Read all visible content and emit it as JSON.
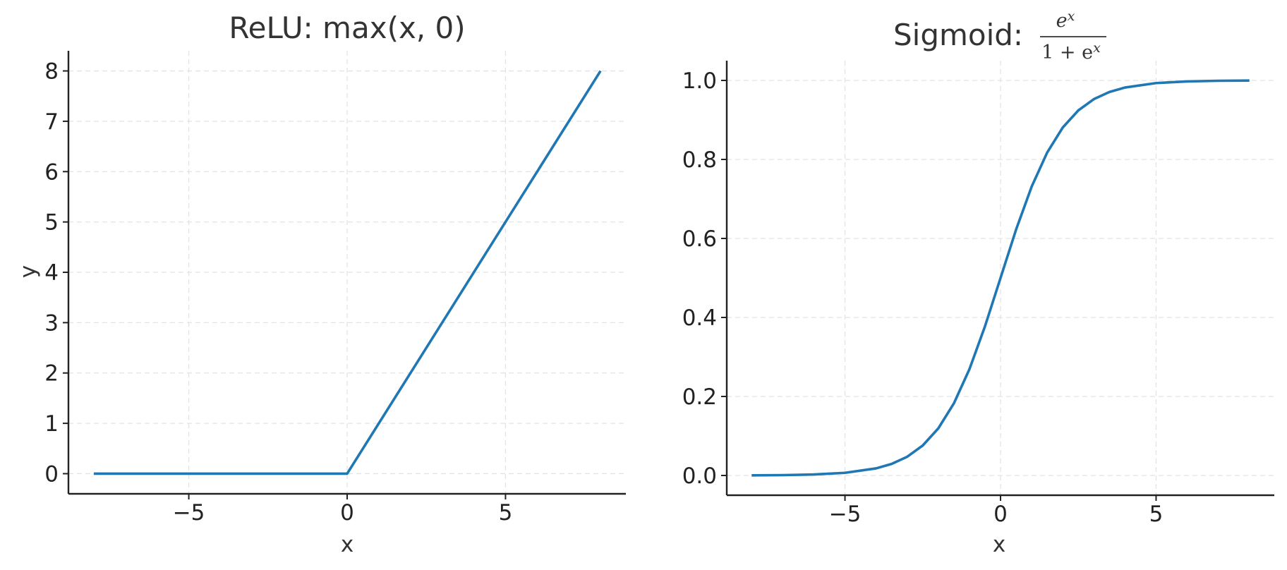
{
  "chart_data": [
    {
      "type": "line",
      "title": "ReLU: max(x, 0)",
      "xlabel": "x",
      "ylabel": "y",
      "xlim": [
        -8.8,
        8.8
      ],
      "ylim": [
        -0.4,
        8.4
      ],
      "xticks": [
        -5,
        0,
        5
      ],
      "xtick_labels": [
        "−5",
        "0",
        "5"
      ],
      "yticks": [
        0,
        1,
        2,
        3,
        4,
        5,
        6,
        7,
        8
      ],
      "ytick_labels": [
        "0",
        "1",
        "2",
        "3",
        "4",
        "5",
        "6",
        "7",
        "8"
      ],
      "grid": true,
      "legend": "none",
      "series": [
        {
          "color": "#1f77b4",
          "x": [
            -8,
            0,
            8
          ],
          "y": [
            0,
            0,
            8
          ]
        }
      ]
    },
    {
      "type": "line",
      "title": "Sigmoid: ",
      "title_formula": {
        "numerator": "e",
        "numerator_exponent": "x",
        "denominator": "1 + e",
        "denominator_exponent": "x"
      },
      "xlabel": "x",
      "ylabel": "",
      "xlim": [
        -8.8,
        8.8
      ],
      "ylim": [
        -0.05,
        1.05
      ],
      "xticks": [
        -5,
        0,
        5
      ],
      "xtick_labels": [
        "−5",
        "0",
        "5"
      ],
      "yticks": [
        0.0,
        0.2,
        0.4,
        0.6,
        0.8,
        1.0
      ],
      "ytick_labels": [
        "0.0",
        "0.2",
        "0.4",
        "0.6",
        "0.8",
        "1.0"
      ],
      "grid": true,
      "legend": "none",
      "series": [
        {
          "color": "#1f77b4",
          "x": [
            -8,
            -7,
            -6,
            -5,
            -4,
            -3.5,
            -3,
            -2.5,
            -2,
            -1.5,
            -1,
            -0.5,
            0,
            0.5,
            1,
            1.5,
            2,
            2.5,
            3,
            3.5,
            4,
            5,
            6,
            7,
            8
          ],
          "y": [
            0.0003,
            0.0009,
            0.0025,
            0.0067,
            0.018,
            0.0293,
            0.0474,
            0.0759,
            0.1192,
            0.1824,
            0.2689,
            0.3775,
            0.5,
            0.6225,
            0.7311,
            0.8176,
            0.8808,
            0.9241,
            0.9526,
            0.9707,
            0.982,
            0.9933,
            0.9975,
            0.9991,
            0.9997
          ]
        }
      ]
    }
  ]
}
